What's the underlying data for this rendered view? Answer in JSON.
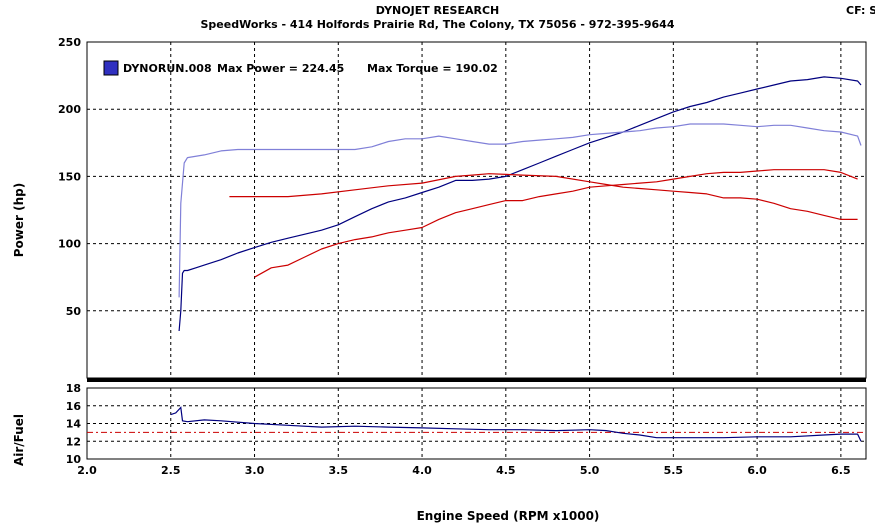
{
  "header": {
    "title": "DYNOJET RESEARCH",
    "subtitle": "SpeedWorks - 414 Holfords Prairie Rd, The Colony, TX 75056 - 972-395-9644",
    "corner": "CF: S"
  },
  "legend": {
    "run_name": "DYNORUN.008",
    "max_power_text": "Max Power = 224.45",
    "max_torque_text": "Max Torque = 190.02"
  },
  "colors": {
    "power_blue": "#00007f",
    "torque_blue": "#8080d8",
    "power_red": "#cc0000",
    "torque_red": "#cc0000",
    "afr_line": "#00007f",
    "afr_ref": "#cc0000",
    "grid": "#000000",
    "legend_swatch": "#3030c0"
  },
  "chart_data": [
    {
      "type": "line",
      "title": "",
      "ylabel": "Power (hp)",
      "xlabel": "",
      "xlim": [
        2.0,
        6.65
      ],
      "ylim": [
        0,
        250
      ],
      "grid": true,
      "legend_position": "top-left",
      "x_ticks": [
        2.0,
        2.5,
        3.0,
        3.5,
        4.0,
        4.5,
        5.0,
        5.5,
        6.0,
        6.5
      ],
      "y_ticks": [
        50,
        100,
        150,
        200,
        250
      ],
      "series": [
        {
          "name": "",
          "role": "power_blue",
          "x": [
            2.55,
            2.56,
            2.57,
            2.58,
            2.6,
            2.65,
            2.7,
            2.8,
            2.9,
            3.0,
            3.1,
            3.2,
            3.3,
            3.4,
            3.5,
            3.6,
            3.7,
            3.8,
            3.9,
            4.0,
            4.1,
            4.2,
            4.3,
            4.4,
            4.5,
            4.6,
            4.7,
            4.8,
            4.9,
            5.0,
            5.1,
            5.2,
            5.3,
            5.4,
            5.5,
            5.6,
            5.7,
            5.8,
            5.9,
            6.0,
            6.1,
            6.2,
            6.3,
            6.4,
            6.5,
            6.6,
            6.62
          ],
          "y": [
            35,
            50,
            78,
            80,
            80,
            82,
            84,
            88,
            93,
            97,
            101,
            104,
            107,
            110,
            114,
            120,
            126,
            131,
            134,
            138,
            142,
            147,
            147,
            148,
            150,
            155,
            160,
            165,
            170,
            175,
            179,
            183,
            188,
            193,
            198,
            202,
            205,
            209,
            212,
            215,
            218,
            221,
            222,
            224,
            223,
            221,
            218
          ]
        },
        {
          "name": "",
          "role": "torque_blue",
          "x": [
            2.55,
            2.56,
            2.58,
            2.6,
            2.7,
            2.8,
            2.9,
            3.0,
            3.1,
            3.2,
            3.3,
            3.4,
            3.5,
            3.6,
            3.7,
            3.8,
            3.9,
            4.0,
            4.1,
            4.2,
            4.3,
            4.4,
            4.5,
            4.6,
            4.7,
            4.8,
            4.9,
            5.0,
            5.1,
            5.2,
            5.3,
            5.4,
            5.5,
            5.6,
            5.7,
            5.8,
            5.9,
            6.0,
            6.1,
            6.2,
            6.3,
            6.4,
            6.5,
            6.6,
            6.62
          ],
          "y": [
            60,
            130,
            160,
            164,
            166,
            169,
            170,
            170,
            170,
            170,
            170,
            170,
            170,
            170,
            172,
            176,
            178,
            178,
            180,
            178,
            176,
            174,
            174,
            176,
            177,
            178,
            179,
            181,
            182,
            183,
            184,
            186,
            187,
            189,
            189,
            189,
            188,
            187,
            188,
            188,
            186,
            184,
            183,
            180,
            173
          ]
        },
        {
          "name": "",
          "role": "power_red",
          "x": [
            3.0,
            3.1,
            3.2,
            3.3,
            3.4,
            3.5,
            3.6,
            3.7,
            3.8,
            3.9,
            4.0,
            4.1,
            4.2,
            4.3,
            4.4,
            4.5,
            4.6,
            4.7,
            4.8,
            4.9,
            5.0,
            5.1,
            5.2,
            5.3,
            5.4,
            5.5,
            5.6,
            5.7,
            5.8,
            5.9,
            6.0,
            6.1,
            6.2,
            6.3,
            6.4,
            6.5,
            6.6
          ],
          "y": [
            75,
            82,
            84,
            90,
            96,
            100,
            103,
            105,
            108,
            110,
            112,
            118,
            123,
            126,
            129,
            132,
            132,
            135,
            137,
            139,
            142,
            143,
            144,
            145,
            146,
            148,
            150,
            152,
            153,
            153,
            154,
            155,
            155,
            155,
            155,
            153,
            148
          ]
        },
        {
          "name": "",
          "role": "torque_red",
          "x": [
            2.85,
            3.0,
            3.2,
            3.4,
            3.6,
            3.8,
            4.0,
            4.2,
            4.3,
            4.4,
            4.6,
            4.8,
            5.0,
            5.1,
            5.2,
            5.3,
            5.4,
            5.5,
            5.6,
            5.7,
            5.8,
            5.9,
            6.0,
            6.1,
            6.2,
            6.3,
            6.4,
            6.5,
            6.6
          ],
          "y": [
            135,
            135,
            135,
            137,
            140,
            143,
            145,
            150,
            151,
            152,
            151,
            150,
            146,
            144,
            142,
            141,
            140,
            139,
            138,
            137,
            134,
            134,
            133,
            130,
            126,
            124,
            121,
            118,
            118
          ]
        }
      ]
    },
    {
      "type": "line",
      "title": "",
      "ylabel": "Air/Fuel",
      "xlabel": "Engine Speed (RPM x1000)",
      "xlim": [
        2.0,
        6.65
      ],
      "ylim": [
        10,
        18
      ],
      "grid": true,
      "x_ticks": [
        2.0,
        2.5,
        3.0,
        3.5,
        4.0,
        4.5,
        5.0,
        5.5,
        6.0,
        6.5
      ],
      "y_ticks": [
        10,
        12,
        14,
        16,
        18
      ],
      "reference_line": 13.0,
      "series": [
        {
          "name": "",
          "role": "afr_line",
          "x": [
            2.5,
            2.53,
            2.56,
            2.57,
            2.6,
            2.7,
            2.8,
            3.0,
            3.2,
            3.4,
            3.6,
            3.8,
            4.0,
            4.2,
            4.4,
            4.6,
            4.8,
            5.0,
            5.1,
            5.2,
            5.3,
            5.4,
            5.6,
            5.8,
            6.0,
            6.2,
            6.4,
            6.5,
            6.6,
            6.62
          ],
          "y": [
            15.0,
            15.2,
            15.8,
            14.3,
            14.2,
            14.4,
            14.3,
            14.0,
            13.8,
            13.6,
            13.7,
            13.6,
            13.5,
            13.4,
            13.3,
            13.3,
            13.2,
            13.3,
            13.2,
            12.9,
            12.7,
            12.4,
            12.4,
            12.4,
            12.5,
            12.5,
            12.7,
            12.8,
            12.8,
            12.0
          ]
        }
      ]
    }
  ]
}
